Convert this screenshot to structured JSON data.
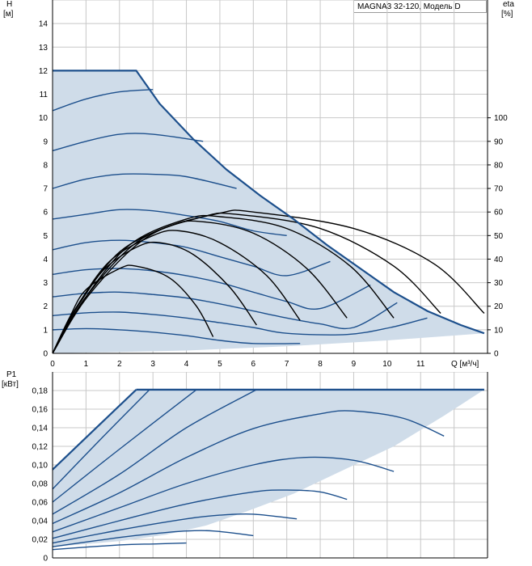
{
  "legend_label": "MAGNA3 32-120, Модель D",
  "top_chart": {
    "y_label_top": "H",
    "y_label_unit": "[м]",
    "y2_label_top": "eta",
    "y2_label_unit": "[%]",
    "x_label": "Q [м³/ч]"
  },
  "bottom_chart": {
    "y_label_top": "P1",
    "y_label_unit": "[кВт]"
  },
  "colors": {
    "envelope_fill": "#cfdce9",
    "curve_blue": "#1c4f8c",
    "eta_curve": "#000000",
    "grid": "#c8c8c8"
  },
  "chart_data": [
    {
      "type": "line",
      "title": "",
      "xlabel": "Q [м³/ч]",
      "ylabel": "H [м]",
      "y2label": "eta [%]",
      "xlim": [
        0,
        13
      ],
      "ylim": [
        0,
        15
      ],
      "y2lim": [
        0,
        100
      ],
      "x_ticks": [
        0,
        1,
        2,
        3,
        4,
        5,
        6,
        7,
        8,
        9,
        10,
        11
      ],
      "y_ticks": [
        0,
        1,
        2,
        3,
        4,
        5,
        6,
        7,
        8,
        9,
        10,
        11,
        12,
        13,
        14
      ],
      "y2_ticks": [
        0,
        10,
        20,
        30,
        40,
        50,
        60,
        70,
        80,
        90,
        100
      ],
      "grid": true,
      "envelope": [
        [
          0,
          0
        ],
        [
          0,
          12
        ],
        [
          2.5,
          12
        ],
        [
          3.2,
          10.6
        ],
        [
          4.2,
          9.1
        ],
        [
          5.2,
          7.8
        ],
        [
          6.2,
          6.7
        ],
        [
          7.2,
          5.7
        ],
        [
          8.2,
          4.6
        ],
        [
          9.2,
          3.6
        ],
        [
          10.2,
          2.6
        ],
        [
          11.2,
          1.8
        ],
        [
          12.2,
          1.2
        ],
        [
          12.9,
          0.85
        ],
        [
          10,
          0.55
        ],
        [
          7,
          0.3
        ],
        [
          4,
          0.12
        ],
        [
          0,
          0
        ]
      ],
      "head_curves": [
        {
          "points": [
            [
              0,
              10.3
            ],
            [
              1,
              10.8
            ],
            [
              2,
              11.1
            ],
            [
              3,
              11.2
            ]
          ]
        },
        {
          "points": [
            [
              0,
              8.6
            ],
            [
              1,
              9.0
            ],
            [
              2,
              9.3
            ],
            [
              3,
              9.3
            ],
            [
              4.5,
              9.0
            ]
          ]
        },
        {
          "points": [
            [
              0,
              7.0
            ],
            [
              1,
              7.4
            ],
            [
              2,
              7.6
            ],
            [
              3,
              7.6
            ],
            [
              4,
              7.5
            ],
            [
              5.5,
              7.0
            ]
          ]
        },
        {
          "points": [
            [
              0,
              5.7
            ],
            [
              1,
              5.9
            ],
            [
              2,
              6.1
            ],
            [
              3,
              6.05
            ],
            [
              4,
              5.85
            ],
            [
              5,
              5.6
            ],
            [
              6,
              5.2
            ],
            [
              7,
              5.0
            ]
          ]
        },
        {
          "points": [
            [
              0,
              4.4
            ],
            [
              1,
              4.7
            ],
            [
              2,
              4.8
            ],
            [
              3,
              4.7
            ],
            [
              4,
              4.5
            ],
            [
              5,
              4.1
            ],
            [
              6,
              3.7
            ],
            [
              7,
              3.3
            ],
            [
              8.3,
              3.9
            ]
          ]
        },
        {
          "points": [
            [
              0,
              3.35
            ],
            [
              1,
              3.55
            ],
            [
              2,
              3.6
            ],
            [
              3,
              3.5
            ],
            [
              4,
              3.3
            ],
            [
              5,
              3.0
            ],
            [
              6,
              2.6
            ],
            [
              7,
              2.2
            ],
            [
              8,
              1.9
            ],
            [
              9.5,
              2.9
            ]
          ]
        },
        {
          "points": [
            [
              0,
              2.4
            ],
            [
              1,
              2.55
            ],
            [
              2,
              2.6
            ],
            [
              3,
              2.5
            ],
            [
              4,
              2.35
            ],
            [
              5,
              2.1
            ],
            [
              6,
              1.8
            ],
            [
              7,
              1.5
            ],
            [
              8,
              1.25
            ],
            [
              9,
              1.1
            ],
            [
              10.3,
              2.15
            ]
          ]
        },
        {
          "points": [
            [
              0,
              1.6
            ],
            [
              1,
              1.72
            ],
            [
              2,
              1.75
            ],
            [
              3,
              1.65
            ],
            [
              4,
              1.5
            ],
            [
              5,
              1.3
            ],
            [
              6,
              1.1
            ],
            [
              7,
              0.85
            ],
            [
              8.8,
              0.8
            ],
            [
              10.1,
              1.1
            ],
            [
              11.2,
              1.5
            ]
          ]
        },
        {
          "points": [
            [
              0,
              1.0
            ],
            [
              1,
              1.05
            ],
            [
              2,
              1.0
            ],
            [
              3,
              0.9
            ],
            [
              4,
              0.75
            ],
            [
              5,
              0.55
            ],
            [
              6,
              0.42
            ],
            [
              7.4,
              0.42
            ]
          ]
        }
      ],
      "eta_curves": [
        {
          "x_end": 4.8,
          "peak_eta": 37,
          "points": [
            [
              0,
              0
            ],
            [
              0.5,
              15
            ],
            [
              1,
              27
            ],
            [
              2,
              36
            ],
            [
              2.5,
              37
            ],
            [
              3.5,
              32
            ],
            [
              4.3,
              20
            ],
            [
              4.8,
              7
            ]
          ]
        },
        {
          "x_end": 6.1,
          "peak_eta": 47,
          "points": [
            [
              0,
              0
            ],
            [
              0.6,
              17
            ],
            [
              1.5,
              35
            ],
            [
              2.5,
              45
            ],
            [
              3.2,
              47
            ],
            [
              4.2,
              42
            ],
            [
              5.3,
              28
            ],
            [
              6.1,
              12
            ]
          ]
        },
        {
          "x_end": 7.4,
          "peak_eta": 52,
          "points": [
            [
              0,
              0
            ],
            [
              0.7,
              19
            ],
            [
              1.7,
              39
            ],
            [
              3,
              50
            ],
            [
              3.8,
              52
            ],
            [
              5,
              47
            ],
            [
              6.4,
              33
            ],
            [
              7.4,
              14
            ]
          ]
        },
        {
          "x_end": 8.8,
          "peak_eta": 56,
          "points": [
            [
              0,
              0
            ],
            [
              0.8,
              21
            ],
            [
              2,
              43
            ],
            [
              3.5,
              54
            ],
            [
              4.4,
              56
            ],
            [
              6,
              51
            ],
            [
              7.6,
              36
            ],
            [
              8.8,
              15
            ]
          ]
        },
        {
          "x_end": 10.2,
          "peak_eta": 58,
          "points": [
            [
              0,
              0
            ],
            [
              0.9,
              22
            ],
            [
              2.3,
              46
            ],
            [
              4,
              57
            ],
            [
              5,
              58
            ],
            [
              7,
              53
            ],
            [
              8.9,
              37
            ],
            [
              10.2,
              15
            ]
          ]
        },
        {
          "x_end": 11.6,
          "peak_eta": 59,
          "points": [
            [
              0,
              0
            ],
            [
              1,
              24
            ],
            [
              2.6,
              48
            ],
            [
              4.5,
              58
            ],
            [
              5.5,
              59
            ],
            [
              8,
              53
            ],
            [
              10.2,
              37
            ],
            [
              11.6,
              17
            ]
          ]
        },
        {
          "x_end": 12.9,
          "peak_eta": 60,
          "points": [
            [
              0,
              0
            ],
            [
              1.1,
              25
            ],
            [
              2.9,
              50
            ],
            [
              5,
              59.5
            ],
            [
              6,
              60
            ],
            [
              9,
              53
            ],
            [
              11.4,
              38
            ],
            [
              12.9,
              17
            ]
          ]
        }
      ]
    },
    {
      "type": "line",
      "title": "",
      "xlabel": "Q [м³/ч]",
      "ylabel": "P1 [кВт]",
      "xlim": [
        0,
        13
      ],
      "ylim": [
        0,
        0.2
      ],
      "x_ticks": [
        0,
        1,
        2,
        3,
        4,
        5,
        6,
        7,
        8,
        9,
        10,
        11
      ],
      "y_ticks": [
        0,
        0.02,
        0.04,
        0.06,
        0.08,
        0.1,
        0.12,
        0.14,
        0.16,
        0.18
      ],
      "y_tick_labels": [
        "0",
        "0,02",
        "0,04",
        "0,06",
        "0,08",
        "0,10",
        "0,12",
        "0,14",
        "0,16",
        "0,18"
      ],
      "grid": true,
      "envelope": [
        [
          0,
          0.095
        ],
        [
          2.5,
          0.181
        ],
        [
          12.9,
          0.181
        ],
        [
          11.7,
          0.153
        ],
        [
          10.2,
          0.12
        ],
        [
          8.6,
          0.093
        ],
        [
          7.2,
          0.069
        ],
        [
          5.8,
          0.05
        ],
        [
          4.6,
          0.035
        ],
        [
          3.4,
          0.025
        ],
        [
          2,
          0.018
        ],
        [
          0,
          0.012
        ]
      ],
      "power_curves": [
        {
          "points": [
            [
              0,
              0.095
            ],
            [
              2.5,
              0.181
            ]
          ]
        },
        {
          "points": [
            [
              0,
              0.074
            ],
            [
              1.5,
              0.13
            ],
            [
              2.9,
              0.181
            ]
          ]
        },
        {
          "points": [
            [
              0,
              0.06
            ],
            [
              2,
              0.117
            ],
            [
              4.3,
              0.181
            ]
          ]
        },
        {
          "points": [
            [
              0,
              0.047
            ],
            [
              2,
              0.09
            ],
            [
              4,
              0.14
            ],
            [
              6.1,
              0.181
            ]
          ]
        },
        {
          "points": [
            [
              0,
              0.037
            ],
            [
              2,
              0.07
            ],
            [
              4,
              0.108
            ],
            [
              6,
              0.139
            ],
            [
              8,
              0.155
            ],
            [
              9,
              0.158
            ],
            [
              10.5,
              0.15
            ],
            [
              11.7,
              0.131
            ]
          ]
        },
        {
          "points": [
            [
              0,
              0.028
            ],
            [
              2,
              0.054
            ],
            [
              4,
              0.08
            ],
            [
              6,
              0.1
            ],
            [
              7.5,
              0.108
            ],
            [
              9,
              0.105
            ],
            [
              10.2,
              0.093
            ]
          ]
        },
        {
          "points": [
            [
              0,
              0.021
            ],
            [
              2,
              0.04
            ],
            [
              4,
              0.058
            ],
            [
              6,
              0.071
            ],
            [
              7,
              0.073
            ],
            [
              8,
              0.071
            ],
            [
              8.8,
              0.063
            ]
          ]
        },
        {
          "points": [
            [
              0,
              0.016
            ],
            [
              2,
              0.03
            ],
            [
              4,
              0.042
            ],
            [
              5,
              0.046
            ],
            [
              6,
              0.047
            ],
            [
              7.3,
              0.042
            ]
          ]
        },
        {
          "points": [
            [
              0,
              0.012
            ],
            [
              2,
              0.022
            ],
            [
              3,
              0.026
            ],
            [
              4,
              0.029
            ],
            [
              4.8,
              0.029
            ],
            [
              6,
              0.024
            ]
          ]
        },
        {
          "points": [
            [
              0,
              0.009
            ],
            [
              2,
              0.014
            ],
            [
              3,
              0.015
            ],
            [
              4,
              0.016
            ]
          ]
        }
      ]
    }
  ]
}
